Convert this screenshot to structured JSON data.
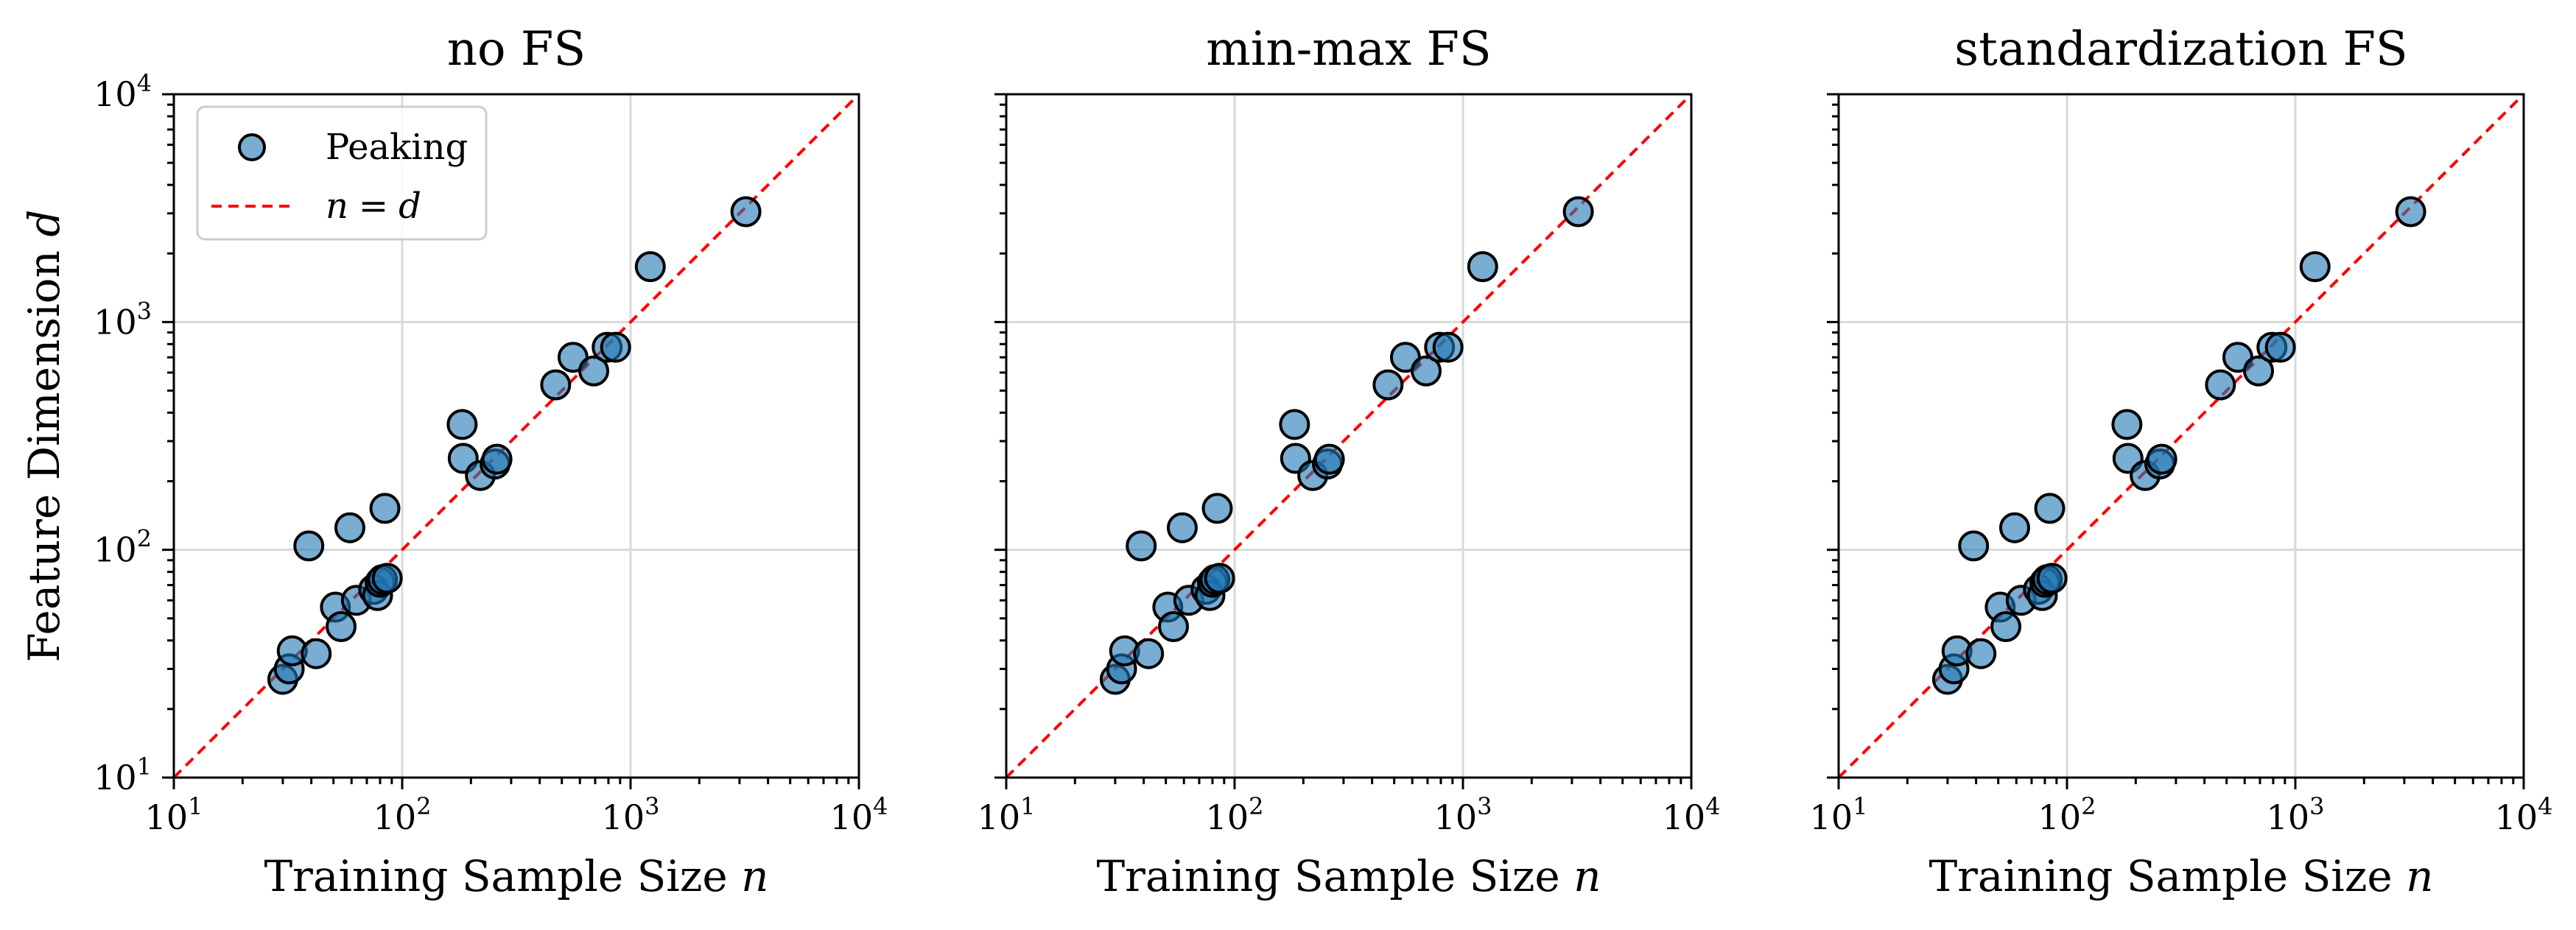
{
  "chart_data": [
    {
      "type": "scatter",
      "title": "no FS",
      "xlabel": "Training Sample Size",
      "xlabel_var": "n",
      "ylabel": "Feature Dimension",
      "ylabel_var": "d",
      "xscale": "log",
      "yscale": "log",
      "xlim": [
        10,
        10000
      ],
      "ylim": [
        10,
        10000
      ],
      "grid": true,
      "legend": true,
      "legend_position": "top-left"
    },
    {
      "type": "scatter",
      "title": "min-max FS",
      "xlabel": "Training Sample Size",
      "xlabel_var": "n",
      "xscale": "log",
      "yscale": "log",
      "xlim": [
        10,
        10000
      ],
      "ylim": [
        10,
        10000
      ],
      "grid": true,
      "legend": false
    },
    {
      "type": "scatter",
      "title": "standardization FS",
      "xlabel": "Training Sample Size",
      "xlabel_var": "n",
      "xscale": "log",
      "yscale": "log",
      "xlim": [
        10,
        10000
      ],
      "ylim": [
        10,
        10000
      ],
      "grid": true,
      "legend": false
    }
  ],
  "series": {
    "name": "Peaking",
    "color": "#1f77b4",
    "edge_color": "#000000",
    "points": [
      {
        "n": 30,
        "d": 27
      },
      {
        "n": 32,
        "d": 30
      },
      {
        "n": 33,
        "d": 36
      },
      {
        "n": 39,
        "d": 104
      },
      {
        "n": 42,
        "d": 35
      },
      {
        "n": 51,
        "d": 56
      },
      {
        "n": 54,
        "d": 46
      },
      {
        "n": 59,
        "d": 125
      },
      {
        "n": 63,
        "d": 60
      },
      {
        "n": 75,
        "d": 67
      },
      {
        "n": 78,
        "d": 63
      },
      {
        "n": 80,
        "d": 72
      },
      {
        "n": 82,
        "d": 74
      },
      {
        "n": 84,
        "d": 152
      },
      {
        "n": 86,
        "d": 75
      },
      {
        "n": 183,
        "d": 355
      },
      {
        "n": 185,
        "d": 252
      },
      {
        "n": 220,
        "d": 212
      },
      {
        "n": 255,
        "d": 238
      },
      {
        "n": 260,
        "d": 250
      },
      {
        "n": 470,
        "d": 530
      },
      {
        "n": 560,
        "d": 700
      },
      {
        "n": 690,
        "d": 610
      },
      {
        "n": 790,
        "d": 775
      },
      {
        "n": 860,
        "d": 775
      },
      {
        "n": 1220,
        "d": 1750
      },
      {
        "n": 3200,
        "d": 3050
      }
    ]
  },
  "reference_line": {
    "name": "n = d",
    "color": "#ff0000",
    "style": "dashed"
  },
  "legend": {
    "peaking_label": "Peaking",
    "line_lhs": "n",
    "line_eq": "=",
    "line_rhs": "d"
  },
  "axes": {
    "tick_base": "10",
    "tick_exponents": [
      "1",
      "2",
      "3",
      "4"
    ]
  }
}
